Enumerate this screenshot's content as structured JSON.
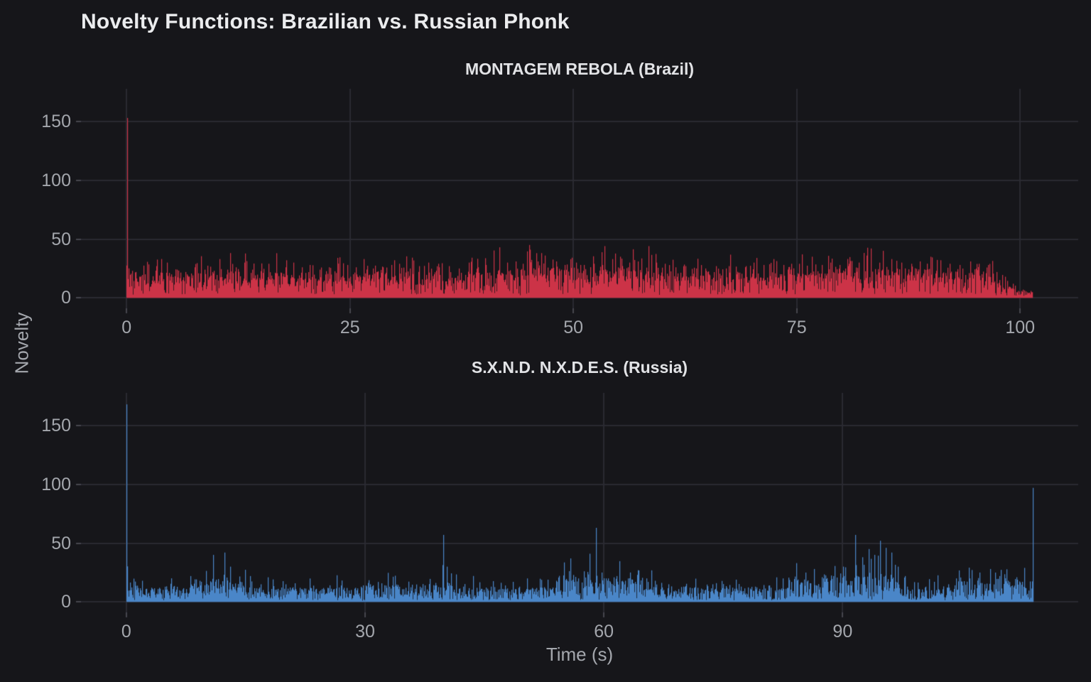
{
  "title": "Novelty Functions: Brazilian vs. Russian Phonk",
  "ylabel": "Novelty",
  "xlabel": "Time (s)",
  "colors": {
    "background": "#16161a",
    "grid": "#2a2a32",
    "tick_mark": "#46464e",
    "tick_text": "#a4a7ad",
    "title_text": "#ebecee",
    "subtitle_text": "#e2e3e6",
    "brazil_red": "#cc3347",
    "russia_blue": "#4a86c8"
  },
  "chart_data": [
    {
      "type": "line",
      "title": "MONTAGEM REBOLA (Brazil)",
      "series_name": "novelty",
      "color": "#cc3347",
      "grid": true,
      "xlim": [
        -5.1,
        106.5
      ],
      "ylim": [
        -8.9,
        177.8
      ],
      "xticks": [
        0,
        25,
        50,
        75,
        100
      ],
      "yticks": [
        0,
        50,
        100,
        150
      ],
      "duration_s": 101.4,
      "frame_rate_hz": 43,
      "noise": {
        "floor": 2.4,
        "spike_amp": 20,
        "spike_pow": 3.3,
        "burst_prob": 0.13,
        "burst_amp": [
          8,
          17
        ],
        "seed": 20311
      },
      "busy_regions": [
        [
          38,
          60,
          1.2
        ],
        [
          78,
          96,
          1.15
        ],
        [
          97,
          99.5,
          0.5
        ],
        [
          99.5,
          101.5,
          0.25
        ]
      ],
      "major_peaks": [
        [
          0.05,
          153
        ],
        [
          1.0,
          22
        ],
        [
          2.1,
          20
        ],
        [
          3.3,
          27
        ],
        [
          4.5,
          30
        ],
        [
          5.6,
          24
        ],
        [
          6.6,
          22
        ],
        [
          7.6,
          26
        ],
        [
          8.7,
          24
        ],
        [
          9.6,
          22
        ],
        [
          10.4,
          33
        ],
        [
          11.3,
          24
        ],
        [
          12.2,
          26
        ],
        [
          13.2,
          30
        ],
        [
          14.1,
          24
        ],
        [
          15.1,
          26
        ],
        [
          15.9,
          29
        ],
        [
          16.8,
          38
        ],
        [
          17.8,
          26
        ],
        [
          18.7,
          30
        ],
        [
          19.6,
          26
        ],
        [
          20.5,
          28
        ],
        [
          21.6,
          24
        ],
        [
          22.6,
          26
        ],
        [
          23.7,
          25
        ],
        [
          24.7,
          28
        ],
        [
          25.7,
          26
        ],
        [
          26.5,
          33
        ],
        [
          27.6,
          25
        ],
        [
          28.7,
          26
        ],
        [
          29.6,
          28
        ],
        [
          30.5,
          29
        ],
        [
          31.7,
          25
        ],
        [
          32.7,
          27
        ],
        [
          33.8,
          30
        ],
        [
          35.0,
          26
        ],
        [
          36.1,
          27
        ],
        [
          37.2,
          25
        ],
        [
          38.3,
          30
        ],
        [
          39.3,
          26
        ],
        [
          40.2,
          28
        ],
        [
          41.7,
          43
        ],
        [
          42.6,
          30
        ],
        [
          43.5,
          31
        ],
        [
          44.3,
          29
        ],
        [
          45.1,
          45
        ],
        [
          46.0,
          31
        ],
        [
          46.8,
          36
        ],
        [
          48.1,
          31
        ],
        [
          49.0,
          28
        ],
        [
          50.3,
          30
        ],
        [
          51.2,
          28
        ],
        [
          52.3,
          29
        ],
        [
          53.5,
          44
        ],
        [
          54.4,
          33
        ],
        [
          55.2,
          35
        ],
        [
          56.3,
          30
        ],
        [
          57.2,
          31
        ],
        [
          58.4,
          44
        ],
        [
          59.3,
          30
        ],
        [
          60.2,
          29
        ],
        [
          61.4,
          26
        ],
        [
          62.5,
          27
        ],
        [
          63.7,
          25
        ],
        [
          64.8,
          25
        ],
        [
          66.0,
          27
        ],
        [
          67.1,
          25
        ],
        [
          68.2,
          26
        ],
        [
          69.3,
          27
        ],
        [
          70.2,
          30
        ],
        [
          71.3,
          28
        ],
        [
          72.4,
          33
        ],
        [
          73.5,
          28
        ],
        [
          74.4,
          29
        ],
        [
          75.6,
          37
        ],
        [
          76.7,
          35
        ],
        [
          77.8,
          28
        ],
        [
          78.8,
          30
        ],
        [
          79.8,
          28
        ],
        [
          80.8,
          29
        ],
        [
          81.9,
          30
        ],
        [
          83.3,
          42
        ],
        [
          84.6,
          40
        ],
        [
          85.6,
          33
        ],
        [
          86.7,
          30
        ],
        [
          87.8,
          29
        ],
        [
          88.8,
          31
        ],
        [
          90.0,
          35
        ],
        [
          91.1,
          32
        ],
        [
          92.1,
          29
        ],
        [
          93.2,
          28
        ],
        [
          94.4,
          31
        ],
        [
          95.4,
          29
        ],
        [
          96.4,
          28
        ],
        [
          97.4,
          22
        ],
        [
          98.3,
          18
        ],
        [
          99.2,
          12
        ],
        [
          100.3,
          7
        ]
      ]
    },
    {
      "type": "line",
      "title": "S.X.N.D. N.X.D.E.S. (Russia)",
      "series_name": "novelty",
      "color": "#4a86c8",
      "grid": true,
      "xlim": [
        -5.7,
        119.6
      ],
      "ylim": [
        -8.9,
        177.8
      ],
      "xticks": [
        0,
        30,
        60,
        90
      ],
      "yticks": [
        0,
        50,
        100,
        150
      ],
      "duration_s": 113.9,
      "frame_rate_hz": 43,
      "noise": {
        "floor": 1.2,
        "spike_amp": 11,
        "spike_pow": 3.8,
        "burst_prob": 0.07,
        "burst_amp": [
          5,
          13
        ],
        "seed": 77103
      },
      "busy_regions": [
        [
          8,
          16,
          1.5
        ],
        [
          30,
          37,
          1.2
        ],
        [
          38,
          41,
          1.3
        ],
        [
          54,
          66,
          1.7
        ],
        [
          83,
          97,
          1.9
        ],
        [
          104,
          114,
          1.5
        ]
      ],
      "major_peaks": [
        [
          0.05,
          168
        ],
        [
          2.4,
          10
        ],
        [
          4.1,
          12
        ],
        [
          5.9,
          13
        ],
        [
          8.0,
          22
        ],
        [
          9.2,
          18
        ],
        [
          10.9,
          40
        ],
        [
          12.3,
          42
        ],
        [
          13.0,
          30
        ],
        [
          14.2,
          18
        ],
        [
          15.5,
          22
        ],
        [
          16.9,
          15
        ],
        [
          18.4,
          12
        ],
        [
          20.0,
          15
        ],
        [
          21.8,
          12
        ],
        [
          23.5,
          13
        ],
        [
          25.3,
          12
        ],
        [
          27.0,
          14
        ],
        [
          28.8,
          12
        ],
        [
          30.6,
          15
        ],
        [
          31.6,
          17
        ],
        [
          33.4,
          14
        ],
        [
          35.1,
          12
        ],
        [
          36.9,
          13
        ],
        [
          38.6,
          14
        ],
        [
          39.8,
          57
        ],
        [
          40.3,
          30
        ],
        [
          42.3,
          13
        ],
        [
          44.0,
          12
        ],
        [
          45.8,
          13
        ],
        [
          47.6,
          14
        ],
        [
          49.4,
          13
        ],
        [
          50.3,
          20
        ],
        [
          52.1,
          15
        ],
        [
          54.0,
          18
        ],
        [
          55.8,
          37
        ],
        [
          56.8,
          20
        ],
        [
          57.5,
          23
        ],
        [
          58.2,
          41
        ],
        [
          59.0,
          63
        ],
        [
          59.7,
          25
        ],
        [
          60.5,
          20
        ],
        [
          61.6,
          22
        ],
        [
          62.7,
          18
        ],
        [
          63.3,
          25
        ],
        [
          64.3,
          27
        ],
        [
          65.3,
          20
        ],
        [
          66.4,
          18
        ],
        [
          68.1,
          15
        ],
        [
          70.0,
          13
        ],
        [
          71.8,
          12
        ],
        [
          73.6,
          15
        ],
        [
          75.4,
          12
        ],
        [
          77.2,
          13
        ],
        [
          79.0,
          13
        ],
        [
          80.8,
          14
        ],
        [
          82.5,
          20
        ],
        [
          84.2,
          33
        ],
        [
          85.3,
          25
        ],
        [
          86.4,
          28
        ],
        [
          87.6,
          20
        ],
        [
          88.8,
          22
        ],
        [
          90.1,
          30
        ],
        [
          91.6,
          57
        ],
        [
          92.5,
          38
        ],
        [
          93.3,
          45
        ],
        [
          94.0,
          40
        ],
        [
          94.7,
          52
        ],
        [
          95.4,
          46
        ],
        [
          96.1,
          42
        ],
        [
          96.9,
          30
        ],
        [
          97.8,
          22
        ],
        [
          99.0,
          15
        ],
        [
          100.4,
          13
        ],
        [
          101.9,
          14
        ],
        [
          103.3,
          15
        ],
        [
          104.6,
          18
        ],
        [
          105.9,
          20
        ],
        [
          107.2,
          25
        ],
        [
          108.5,
          28
        ],
        [
          109.7,
          22
        ],
        [
          110.8,
          18
        ],
        [
          111.9,
          16
        ],
        [
          112.9,
          12
        ],
        [
          113.85,
          97
        ]
      ]
    }
  ]
}
